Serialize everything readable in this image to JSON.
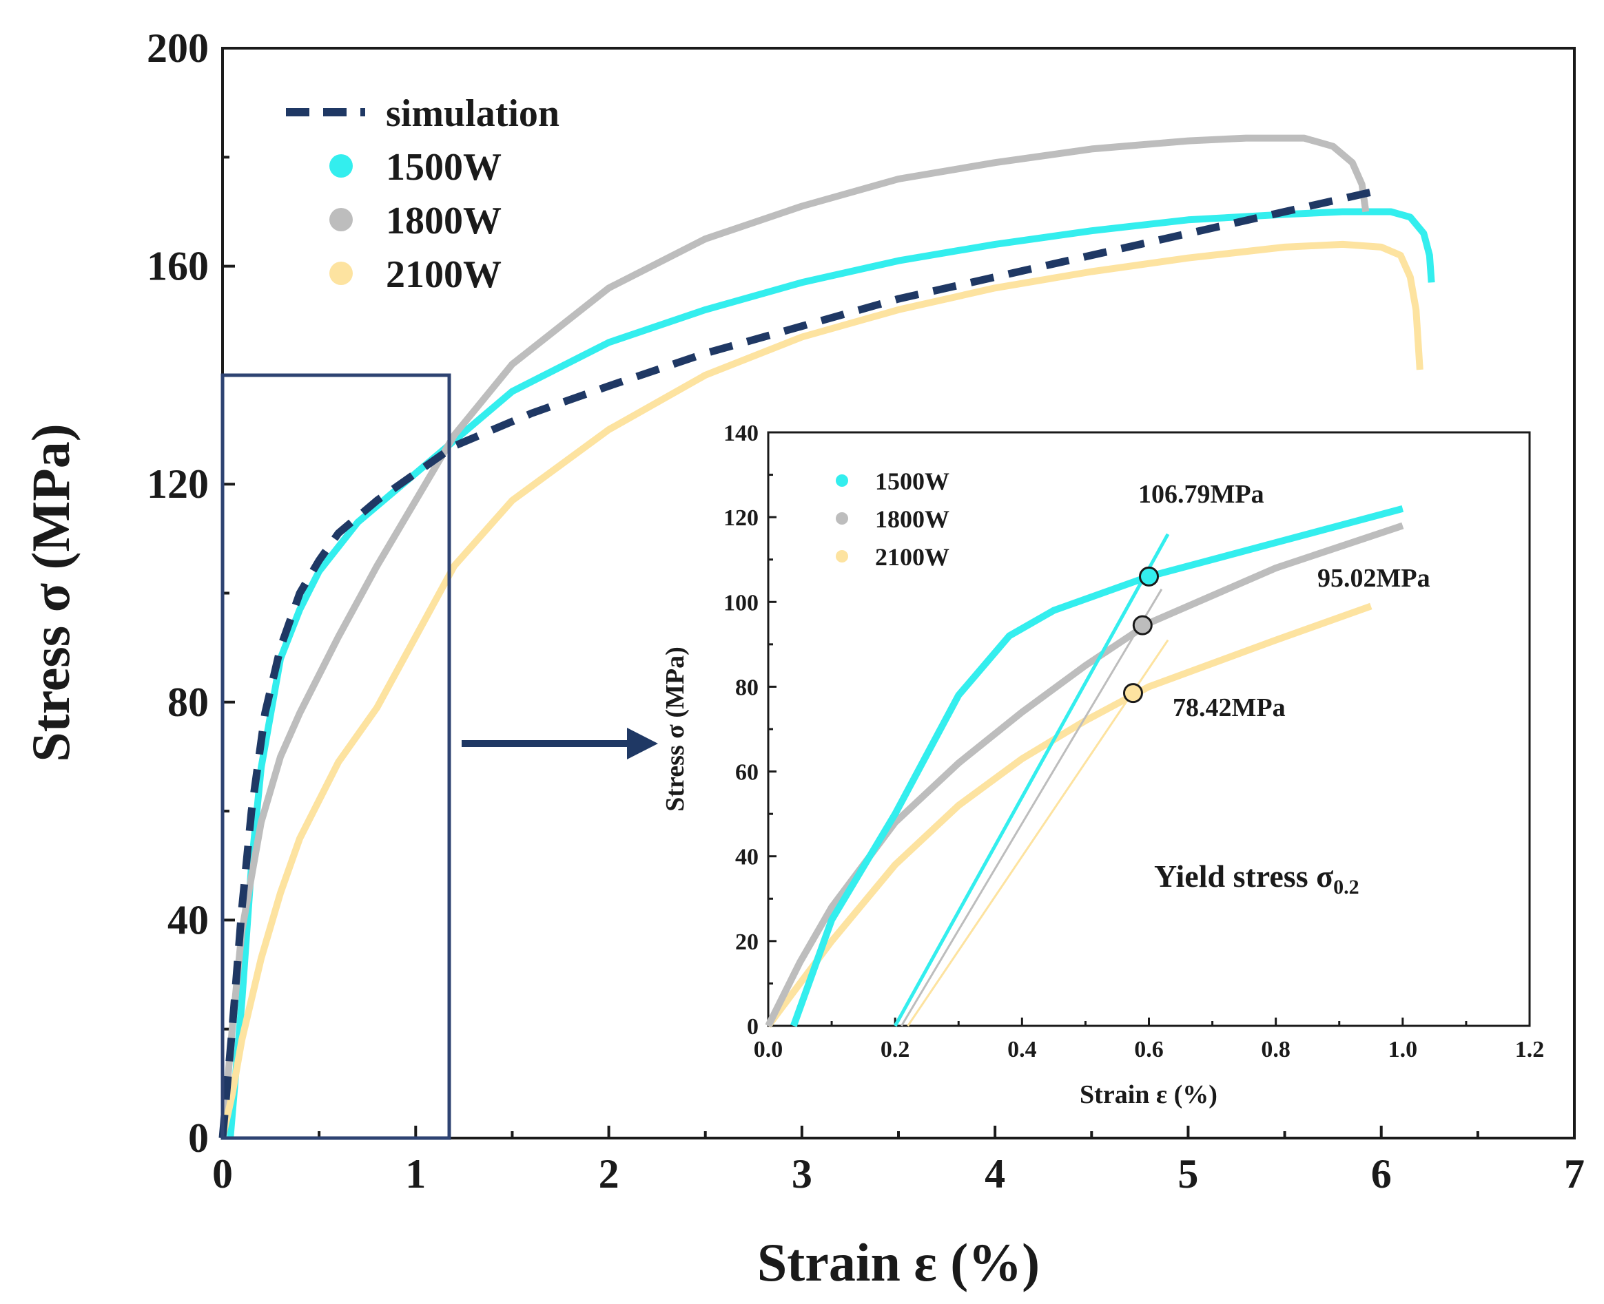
{
  "chart_data": [
    {
      "type": "line",
      "xlabel": "Strain ε (%)",
      "ylabel": "Stress σ (MPa)",
      "xlim": [
        0,
        7
      ],
      "ylim": [
        0,
        200
      ],
      "xticks": [
        "0",
        "1",
        "2",
        "3",
        "4",
        "5",
        "6",
        "7"
      ],
      "yticks": [
        "0",
        "40",
        "80",
        "120",
        "160",
        "200"
      ],
      "legend_position": "top-left",
      "series": [
        {
          "name": "simulation",
          "color": "#1f3864",
          "style": "dashed",
          "points": [
            [
              0,
              0
            ],
            [
              0.05,
              20
            ],
            [
              0.1,
              42
            ],
            [
              0.15,
              60
            ],
            [
              0.22,
              78
            ],
            [
              0.3,
              90
            ],
            [
              0.4,
              100
            ],
            [
              0.5,
              106
            ],
            [
              0.6,
              111
            ],
            [
              0.8,
              117
            ],
            [
              1.0,
              122
            ],
            [
              1.2,
              127
            ],
            [
              1.6,
              133
            ],
            [
              2.0,
              138
            ],
            [
              2.5,
              144
            ],
            [
              3.0,
              149
            ],
            [
              3.5,
              154
            ],
            [
              4.0,
              158
            ],
            [
              4.5,
              162
            ],
            [
              5.0,
              166
            ],
            [
              5.5,
              170
            ],
            [
              6.0,
              174
            ]
          ]
        },
        {
          "name": "1500W",
          "color": "#33eeee",
          "style": "solid",
          "points": [
            [
              0.04,
              0
            ],
            [
              0.1,
              25
            ],
            [
              0.15,
              50
            ],
            [
              0.2,
              68
            ],
            [
              0.3,
              88
            ],
            [
              0.4,
              97
            ],
            [
              0.5,
              104
            ],
            [
              0.7,
              113
            ],
            [
              1.0,
              122
            ],
            [
              1.2,
              128
            ],
            [
              1.5,
              137
            ],
            [
              2.0,
              146
            ],
            [
              2.5,
              152
            ],
            [
              3.0,
              157
            ],
            [
              3.5,
              161
            ],
            [
              4.0,
              164
            ],
            [
              4.5,
              166.5
            ],
            [
              5.0,
              168.5
            ],
            [
              5.5,
              169.5
            ],
            [
              5.8,
              170
            ],
            [
              6.05,
              170
            ],
            [
              6.15,
              169
            ],
            [
              6.22,
              166
            ],
            [
              6.25,
              162
            ],
            [
              6.26,
              157
            ]
          ]
        },
        {
          "name": "1800W",
          "color": "#bdbdbd",
          "style": "solid",
          "points": [
            [
              0.0,
              0
            ],
            [
              0.05,
              20
            ],
            [
              0.1,
              38
            ],
            [
              0.2,
              58
            ],
            [
              0.3,
              70
            ],
            [
              0.4,
              78
            ],
            [
              0.6,
              92
            ],
            [
              0.8,
              105
            ],
            [
              1.0,
              117
            ],
            [
              1.2,
              129
            ],
            [
              1.5,
              142
            ],
            [
              2.0,
              156
            ],
            [
              2.5,
              165
            ],
            [
              3.0,
              171
            ],
            [
              3.5,
              176
            ],
            [
              4.0,
              179
            ],
            [
              4.5,
              181.5
            ],
            [
              5.0,
              183
            ],
            [
              5.3,
              183.5
            ],
            [
              5.6,
              183.5
            ],
            [
              5.75,
              182
            ],
            [
              5.85,
              179
            ],
            [
              5.9,
              175
            ],
            [
              5.92,
              170
            ]
          ]
        },
        {
          "name": "2100W",
          "color": "#fde3a0",
          "style": "solid",
          "points": [
            [
              0.0,
              0
            ],
            [
              0.05,
              8
            ],
            [
              0.1,
              18
            ],
            [
              0.2,
              33
            ],
            [
              0.3,
              45
            ],
            [
              0.4,
              55
            ],
            [
              0.6,
              69
            ],
            [
              0.8,
              79
            ],
            [
              1.0,
              92
            ],
            [
              1.2,
              105
            ],
            [
              1.5,
              117
            ],
            [
              2.0,
              130
            ],
            [
              2.5,
              140
            ],
            [
              3.0,
              147
            ],
            [
              3.5,
              152
            ],
            [
              4.0,
              156
            ],
            [
              4.5,
              159
            ],
            [
              5.0,
              161.5
            ],
            [
              5.5,
              163.5
            ],
            [
              5.8,
              164
            ],
            [
              6.0,
              163.5
            ],
            [
              6.1,
              162
            ],
            [
              6.15,
              158
            ],
            [
              6.18,
              152
            ],
            [
              6.2,
              141
            ]
          ]
        }
      ]
    },
    {
      "type": "line",
      "xlabel": "Strain ε (%)",
      "ylabel": "Stress σ (MPa)",
      "xlim": [
        0.0,
        1.2
      ],
      "ylim": [
        0,
        140
      ],
      "xticks": [
        "0.0",
        "0.2",
        "0.4",
        "0.6",
        "0.8",
        "1.0",
        "1.2"
      ],
      "yticks": [
        "0",
        "20",
        "40",
        "60",
        "80",
        "100",
        "120",
        "140"
      ],
      "legend_position": "top-left",
      "annotations": [
        "106.79MPa",
        "95.02MPa",
        "78.42MPa"
      ],
      "title_note": "Yield stress σ",
      "title_note_sub": "0.2",
      "series": [
        {
          "name": "1500W",
          "color": "#33eeee",
          "points": [
            [
              0.04,
              0
            ],
            [
              0.1,
              25
            ],
            [
              0.2,
              50
            ],
            [
              0.3,
              78
            ],
            [
              0.38,
              92
            ],
            [
              0.45,
              98
            ],
            [
              0.6,
              106
            ],
            [
              0.8,
              114
            ],
            [
              1.0,
              122
            ]
          ]
        },
        {
          "name": "1800W",
          "color": "#bdbdbd",
          "points": [
            [
              0.0,
              0
            ],
            [
              0.05,
              15
            ],
            [
              0.1,
              28
            ],
            [
              0.2,
              48
            ],
            [
              0.3,
              62
            ],
            [
              0.4,
              74
            ],
            [
              0.5,
              85
            ],
            [
              0.6,
              95
            ],
            [
              0.8,
              108
            ],
            [
              1.0,
              118
            ]
          ]
        },
        {
          "name": "2100W",
          "color": "#fde3a0",
          "points": [
            [
              0.0,
              0
            ],
            [
              0.05,
              10
            ],
            [
              0.1,
              20
            ],
            [
              0.2,
              38
            ],
            [
              0.3,
              52
            ],
            [
              0.4,
              63
            ],
            [
              0.5,
              72
            ],
            [
              0.6,
              80
            ],
            [
              0.8,
              91
            ],
            [
              0.95,
              99
            ]
          ]
        }
      ],
      "offset_lines": [
        {
          "color": "#33eeee",
          "points": [
            [
              0.2,
              0
            ],
            [
              0.63,
              116
            ]
          ]
        },
        {
          "color": "#bdbdbd",
          "points": [
            [
              0.21,
              0
            ],
            [
              0.62,
              103
            ]
          ]
        },
        {
          "color": "#fde3a0",
          "points": [
            [
              0.22,
              0
            ],
            [
              0.63,
              91
            ]
          ]
        }
      ],
      "yield_points": [
        {
          "color": "#33eeee",
          "x": 0.6,
          "y": 106
        },
        {
          "color": "#bdbdbd",
          "x": 0.59,
          "y": 94.5
        },
        {
          "color": "#fde3a0",
          "x": 0.575,
          "y": 78.5
        }
      ]
    }
  ]
}
